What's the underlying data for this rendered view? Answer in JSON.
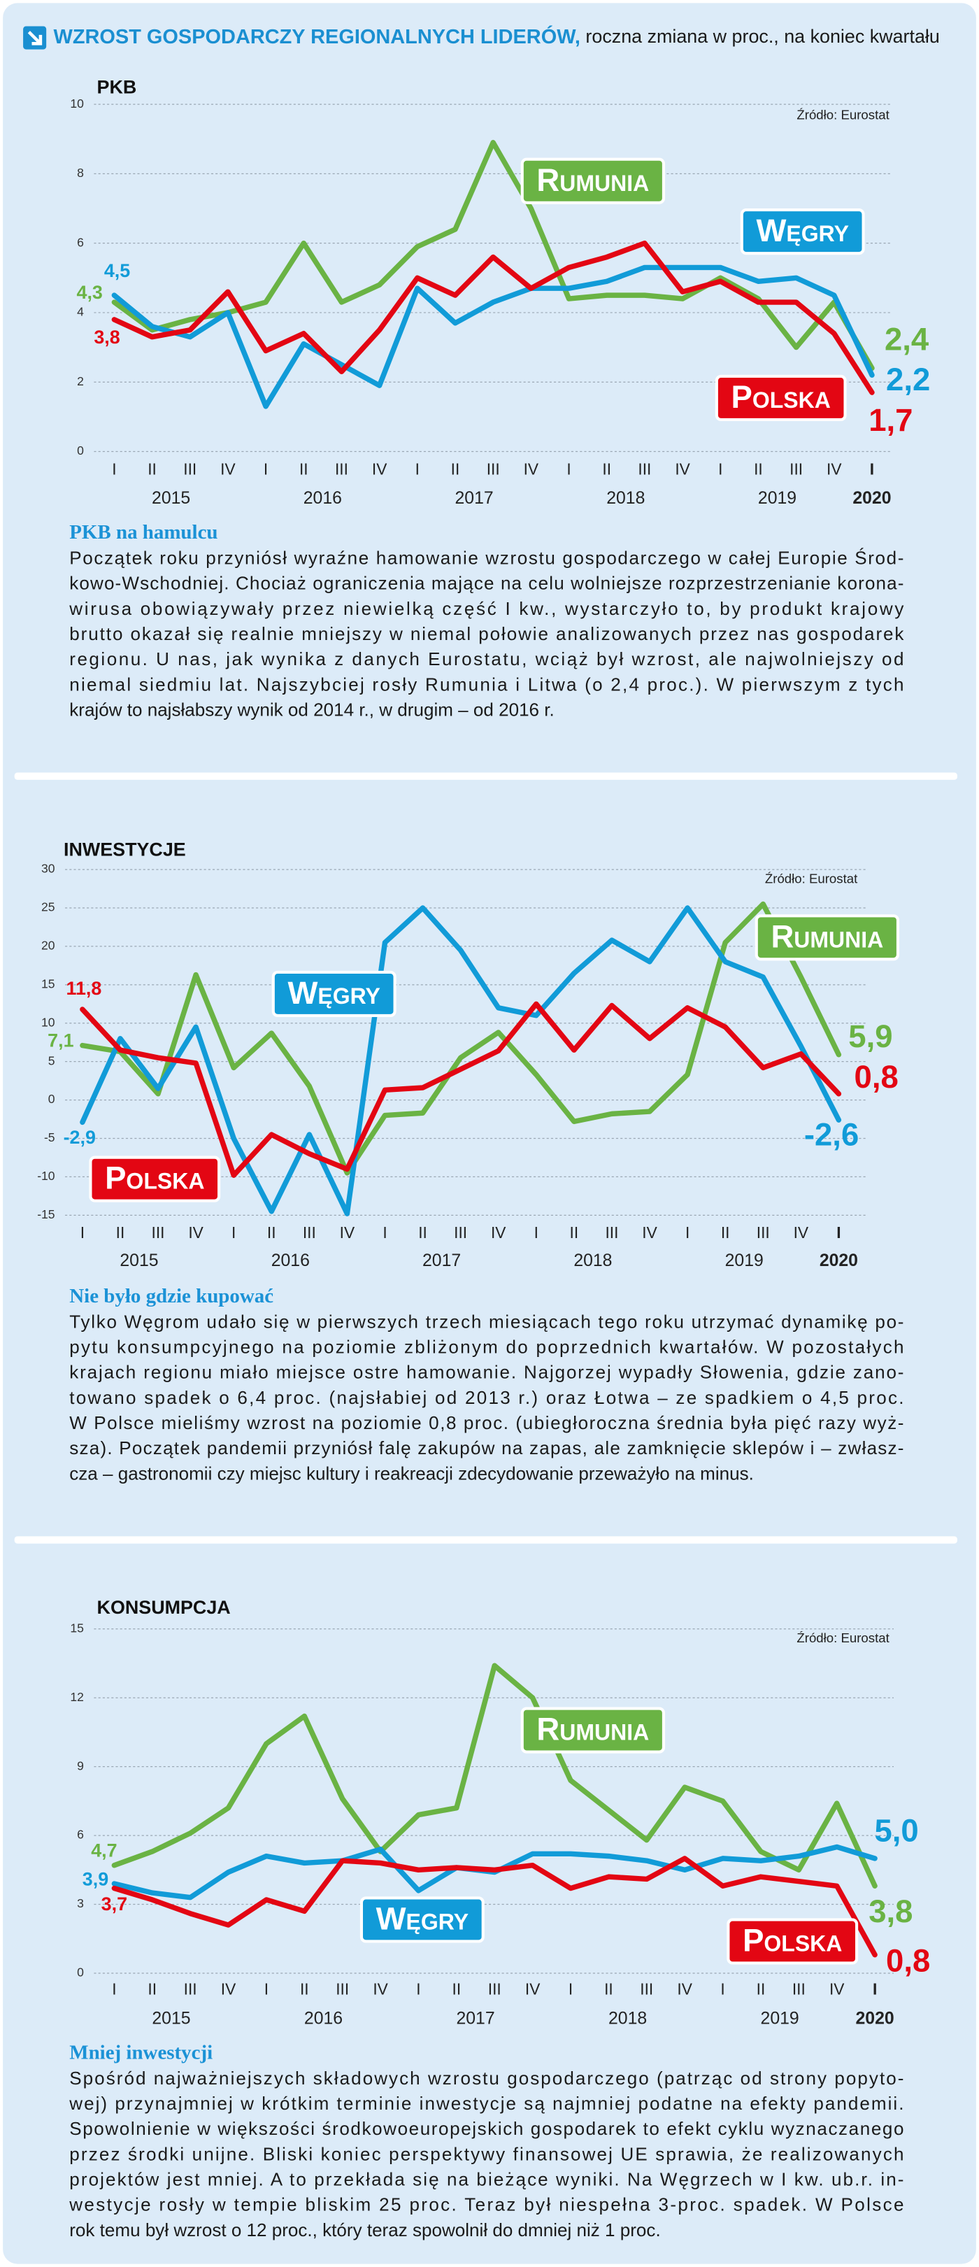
{
  "header": {
    "title": "WZROST GOSPODARCZY REGIONALNYCH LIDERÓW,",
    "subtitle": " roczna zmiana w proc., na koniec kwartału"
  },
  "chart_data": [
    {
      "type": "line",
      "title": "PKB",
      "source": "Źródło: Eurostat",
      "categories": [
        "I",
        "II",
        "III",
        "IV",
        "I",
        "II",
        "III",
        "IV",
        "I",
        "II",
        "III",
        "IV",
        "I",
        "II",
        "III",
        "IV",
        "I",
        "II",
        "III",
        "IV",
        "I"
      ],
      "years": [
        "2015",
        "2016",
        "2017",
        "2018",
        "2019",
        "2020"
      ],
      "ylim": [
        0,
        10
      ],
      "yticks": [
        0,
        2,
        4,
        6,
        8,
        10
      ],
      "grid": true,
      "series": [
        {
          "name": "Rumunia",
          "color": "#6ab344",
          "values": [
            4.3,
            3.5,
            3.8,
            4.0,
            4.3,
            6.0,
            4.3,
            4.8,
            5.9,
            6.4,
            8.9,
            7.0,
            4.4,
            4.5,
            4.5,
            4.4,
            5.0,
            4.4,
            3.0,
            4.3,
            2.4
          ],
          "value_labels": [
            "4,3",
            null,
            null,
            null,
            null,
            null,
            null,
            null,
            null,
            null,
            null,
            null,
            null,
            null,
            null,
            null,
            null,
            null,
            null,
            null,
            "2,4"
          ]
        },
        {
          "name": "Węgry",
          "color": "#119bd8",
          "values": [
            4.5,
            3.6,
            3.3,
            4.0,
            1.3,
            3.1,
            2.5,
            1.9,
            4.7,
            3.7,
            4.3,
            4.7,
            4.7,
            4.9,
            5.3,
            5.3,
            5.3,
            4.9,
            5.0,
            4.5,
            2.2
          ],
          "value_labels": [
            "4,5",
            null,
            null,
            null,
            null,
            null,
            null,
            null,
            null,
            null,
            null,
            null,
            null,
            null,
            null,
            null,
            null,
            null,
            null,
            null,
            "2,2"
          ]
        },
        {
          "name": "Polska",
          "color": "#e30613",
          "values": [
            3.8,
            3.3,
            3.5,
            4.6,
            2.9,
            3.4,
            2.3,
            3.5,
            5.0,
            4.5,
            5.6,
            4.7,
            5.3,
            5.6,
            6.0,
            4.6,
            4.9,
            4.3,
            4.3,
            3.4,
            1.7
          ],
          "value_labels": [
            "3,8",
            null,
            null,
            null,
            null,
            null,
            null,
            null,
            null,
            null,
            null,
            null,
            null,
            null,
            null,
            null,
            null,
            null,
            null,
            null,
            "1,7"
          ]
        }
      ],
      "heading": "PKB na hamulcu",
      "paragraph": [
        "Początek roku przyniósł wyraźne hamowanie wzrostu gospodarczego w całej Europie Środ-",
        "kowo-Wschodniej. Chociaż ograniczenia mające na celu wolniejsze rozprzestrzenianie korona-",
        "wirusa obowiązywały przez niewielką część I kw., wystarczyło to, by produkt krajowy",
        "brutto okazał się realnie mniejszy w niemal połowie analizowanych przez nas gospodarek",
        "regionu. U nas, jak wynika z danych Eurostatu, wciąż był wzrost, ale najwolniejszy od",
        "niemal siedmiu lat. Najszybciej rosły Rumunia i Litwa (o 2,4 proc.). W pierwszym z tych",
        "krajów to najsłabszy wynik od 2014 r., w drugim – od 2016 r."
      ]
    },
    {
      "type": "line",
      "title": "INWESTYCJE",
      "source": "Źródło: Eurostat",
      "categories": [
        "I",
        "II",
        "III",
        "IV",
        "I",
        "II",
        "III",
        "IV",
        "I",
        "II",
        "III",
        "IV",
        "I",
        "II",
        "III",
        "IV",
        "I",
        "II",
        "III",
        "IV",
        "I"
      ],
      "years": [
        "2015",
        "2016",
        "2017",
        "2018",
        "2019",
        "2020"
      ],
      "ylim": [
        -15,
        30
      ],
      "yticks": [
        -15,
        -10,
        -5,
        0,
        5,
        10,
        15,
        20,
        25,
        30
      ],
      "grid": true,
      "series": [
        {
          "name": "Rumunia",
          "color": "#6ab344",
          "values": [
            7.1,
            6.3,
            0.8,
            16.3,
            4.2,
            8.7,
            1.8,
            -9.5,
            -2.0,
            -1.7,
            5.5,
            8.8,
            3.3,
            -2.8,
            -1.8,
            -1.5,
            3.3,
            20.5,
            25.5,
            16.0,
            5.9
          ],
          "value_labels": [
            "7,1",
            null,
            null,
            null,
            null,
            null,
            null,
            null,
            null,
            null,
            null,
            null,
            null,
            null,
            null,
            null,
            null,
            null,
            null,
            null,
            "5,9"
          ]
        },
        {
          "name": "Węgry",
          "color": "#119bd8",
          "values": [
            -2.9,
            8.0,
            1.5,
            9.5,
            -5.0,
            -14.5,
            -4.5,
            -14.8,
            20.5,
            25.0,
            19.5,
            12.0,
            11.0,
            16.5,
            20.8,
            18.0,
            25.0,
            18.0,
            16.0,
            7.0,
            -2.6
          ],
          "value_labels": [
            "-2,9",
            null,
            null,
            null,
            null,
            null,
            null,
            null,
            null,
            null,
            null,
            null,
            null,
            null,
            null,
            null,
            null,
            null,
            null,
            null,
            "-2,6"
          ]
        },
        {
          "name": "Polska",
          "color": "#e30613",
          "values": [
            11.8,
            6.5,
            5.5,
            4.8,
            -9.8,
            -4.5,
            -7.0,
            -9.0,
            1.3,
            1.6,
            4.0,
            6.4,
            12.5,
            6.5,
            12.3,
            8.0,
            12.0,
            9.5,
            4.2,
            6.0,
            0.8
          ],
          "value_labels": [
            "11,8",
            null,
            null,
            null,
            null,
            null,
            null,
            null,
            null,
            null,
            null,
            null,
            null,
            null,
            null,
            null,
            null,
            null,
            null,
            null,
            "0,8"
          ]
        }
      ],
      "heading": "Nie było gdzie kupować",
      "paragraph": [
        "Tylko Węgrom udało się w pierwszych trzech miesiącach tego roku utrzymać dynamikę po-",
        "pytu konsumpcyjnego na poziomie zbliżonym do poprzednich kwartałów. W pozostałych",
        "krajach regionu miało miejsce ostre hamowanie. Najgorzej wypadły Słowenia, gdzie zano-",
        "towano spadek o 6,4 proc. (najsłabiej od 2013 r.) oraz Łotwa – ze spadkiem o 4,5 proc.",
        "W Polsce mieliśmy wzrost na poziomie 0,8 proc. (ubiegłoroczna średnia była pięć razy wyż-",
        "sza). Początek pandemii przyniósł falę zakupów na zapas, ale zamknięcie sklepów i – zwłasz-",
        "cza – gastronomii czy miejsc kultury i reakreacji zdecydowanie przeważyło na minus."
      ]
    },
    {
      "type": "line",
      "title": "KONSUMPCJA",
      "source": "Źródło: Eurostat",
      "categories": [
        "I",
        "II",
        "III",
        "IV",
        "I",
        "II",
        "III",
        "IV",
        "I",
        "II",
        "III",
        "IV",
        "I",
        "II",
        "III",
        "IV",
        "I",
        "II",
        "III",
        "IV",
        "I"
      ],
      "years": [
        "2015",
        "2016",
        "2017",
        "2018",
        "2019",
        "2020"
      ],
      "ylim": [
        0,
        15
      ],
      "yticks": [
        0,
        3,
        6,
        9,
        12,
        15
      ],
      "grid": true,
      "series": [
        {
          "name": "Rumunia",
          "color": "#6ab344",
          "values": [
            4.7,
            5.3,
            6.1,
            7.2,
            10.0,
            11.2,
            7.6,
            5.3,
            6.9,
            7.2,
            13.4,
            12.0,
            8.4,
            7.1,
            5.8,
            8.1,
            7.5,
            5.3,
            4.5,
            7.4,
            3.8
          ],
          "value_labels": [
            "4,7",
            null,
            null,
            null,
            null,
            null,
            null,
            null,
            null,
            null,
            null,
            null,
            null,
            null,
            null,
            null,
            null,
            null,
            null,
            null,
            "3,8"
          ]
        },
        {
          "name": "Węgry",
          "color": "#119bd8",
          "values": [
            3.9,
            3.5,
            3.3,
            4.4,
            5.1,
            4.8,
            4.9,
            5.4,
            3.6,
            4.6,
            4.4,
            5.2,
            5.2,
            5.1,
            4.9,
            4.5,
            5.0,
            4.9,
            5.1,
            5.5,
            5.0
          ],
          "value_labels": [
            "3,9",
            null,
            null,
            null,
            null,
            null,
            null,
            null,
            null,
            null,
            null,
            null,
            null,
            null,
            null,
            null,
            null,
            null,
            null,
            null,
            "5,0"
          ]
        },
        {
          "name": "Polska",
          "color": "#e30613",
          "values": [
            3.7,
            3.2,
            2.6,
            2.1,
            3.2,
            2.7,
            4.9,
            4.8,
            4.5,
            4.6,
            4.5,
            4.7,
            3.7,
            4.2,
            4.1,
            5.0,
            3.8,
            4.2,
            4.0,
            3.8,
            0.8
          ],
          "value_labels": [
            "3,7",
            null,
            null,
            null,
            null,
            null,
            null,
            null,
            null,
            null,
            null,
            null,
            null,
            null,
            null,
            null,
            null,
            null,
            null,
            null,
            "0,8"
          ]
        }
      ],
      "heading": "Mniej inwestycji",
      "paragraph": [
        "Spośród najważniejszych składowych wzrostu gospodarczego (patrząc od strony popyto-",
        "wej) przynajmniej w krótkim terminie inwestycje są najmniej podatne na efekty pandemii.",
        "Spowolnienie w większości środkowoeuropejskich gospodarek to efekt cyklu wyznaczanego",
        "przez środki unijne. Bliski koniec perspektywy finansowej UE sprawia, że realizowanych",
        "projektów jest mniej. A to przekłada się na bieżące wyniki. Na Węgrzech w I kw. ub.r. in-",
        "westycje rosły w tempie bliskim 25 proc. Teraz był niespełna 3-proc. spadek. W Polsce",
        "rok temu był wzrost o 12 proc., który teraz spowolnił do dmniej niż 1 proc."
      ]
    }
  ]
}
